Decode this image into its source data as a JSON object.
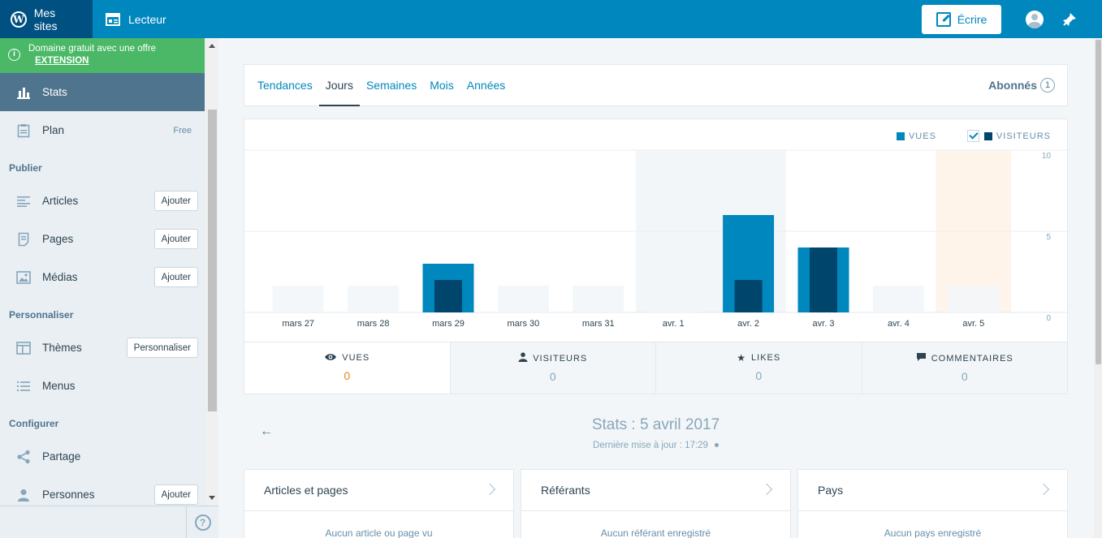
{
  "masterbar": {
    "my_sites": "Mes sites",
    "reader": "Lecteur",
    "write": "Écrire"
  },
  "sidebar": {
    "promo_text": "Domaine gratuit avec une offre",
    "promo_link": "EXTENSION",
    "stats": "Stats",
    "plan": "Plan",
    "plan_badge": "Free",
    "section_publish": "Publier",
    "articles": "Articles",
    "pages": "Pages",
    "media": "Médias",
    "add": "Ajouter",
    "section_personalize": "Personnaliser",
    "themes": "Thèmes",
    "customize": "Personnaliser",
    "menus": "Menus",
    "section_configure": "Configurer",
    "sharing": "Partage",
    "people": "Personnes",
    "help": "?"
  },
  "tabs": {
    "items": [
      "Tendances",
      "Jours",
      "Semaines",
      "Mois",
      "Années"
    ],
    "active": 1,
    "followers_label": "Abonnés",
    "followers_count": "1"
  },
  "legend": {
    "views": "VUES",
    "visitors": "VISITEURS"
  },
  "colors": {
    "views": "#0087be",
    "visitors": "#00456c",
    "placeholder": "#f3f6f8",
    "weekend": "#f3f6f8",
    "today": "#fef4ea"
  },
  "chart_data": {
    "type": "bar",
    "categories": [
      "mars 27",
      "mars 28",
      "mars 29",
      "mars 30",
      "mars 31",
      "avr. 1",
      "avr. 2",
      "avr. 3",
      "avr. 4",
      "avr. 5"
    ],
    "series": [
      {
        "name": "VUES",
        "values": [
          0,
          0,
          3,
          0,
          0,
          0,
          6,
          4,
          0,
          0
        ]
      },
      {
        "name": "VISITEURS",
        "values": [
          0,
          0,
          2,
          0,
          0,
          0,
          2,
          4,
          0,
          0
        ]
      }
    ],
    "yticks": [
      "10",
      "5",
      "0"
    ],
    "ylim": [
      0,
      10
    ],
    "highlighted_weekend": [
      5,
      6
    ],
    "selected_today": 9
  },
  "summary": [
    {
      "label": "VUES",
      "value": "0",
      "icon": "eye-icon"
    },
    {
      "label": "VISITEURS",
      "value": "0",
      "icon": "person-icon"
    },
    {
      "label": "LIKES",
      "value": "0",
      "icon": "star-icon"
    },
    {
      "label": "COMMENTAIRES",
      "value": "0",
      "icon": "comment-icon"
    }
  ],
  "date_nav": {
    "title": "Stats : 5 avril 2017",
    "updated": "Dernière mise à jour : 17:29"
  },
  "modules": [
    {
      "title": "Articles et pages",
      "empty": "Aucun article ou page vu"
    },
    {
      "title": "Référants",
      "empty": "Aucun référant enregistré"
    },
    {
      "title": "Pays",
      "empty": "Aucun pays enregistré"
    }
  ]
}
